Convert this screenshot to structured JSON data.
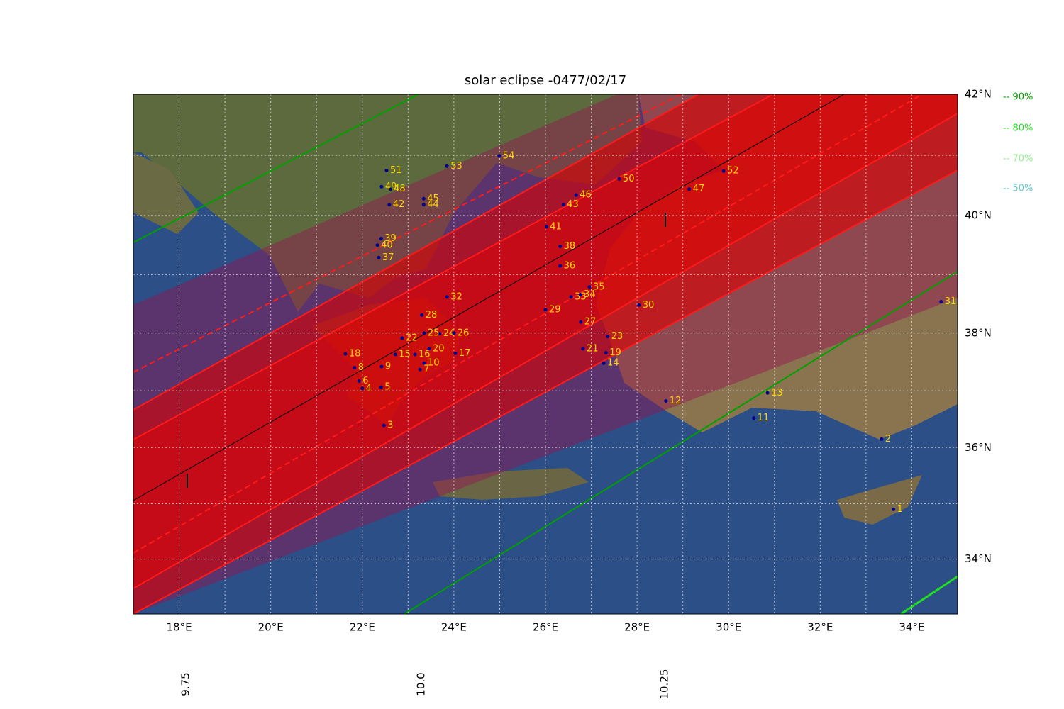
{
  "title": "solar eclipse -0477/02/17",
  "lonlim": [
    17,
    35
  ],
  "latlim": [
    33,
    42
  ],
  "grid_step": 1,
  "lon_ticks": [
    {
      "value": 18,
      "label": "18°E"
    },
    {
      "value": 20,
      "label": "20°E"
    },
    {
      "value": 22,
      "label": "22°E"
    },
    {
      "value": 24,
      "label": "24°E"
    },
    {
      "value": 26,
      "label": "26°E"
    },
    {
      "value": 28,
      "label": "28°E"
    },
    {
      "value": 30,
      "label": "30°E"
    },
    {
      "value": 32,
      "label": "32°E"
    },
    {
      "value": 34,
      "label": "34°E"
    }
  ],
  "lat_ticks": [
    {
      "value": 34,
      "label": "34°N"
    },
    {
      "value": 36,
      "label": "36°N"
    },
    {
      "value": 38,
      "label": "38°N"
    },
    {
      "value": 40,
      "label": "40°N"
    },
    {
      "value": 42,
      "label": "42°N"
    }
  ],
  "legend": [
    {
      "label": "-- 90%",
      "color": "#00a000"
    },
    {
      "label": "-- 80%",
      "color": "#22dd22"
    },
    {
      "label": "-- 70%",
      "color": "#90ee90"
    },
    {
      "label": "-- 50%",
      "color": "#5fc8c8"
    }
  ],
  "time_labels": [
    "9.75",
    "10.0",
    "10.25"
  ],
  "places": [
    {
      "label": 1,
      "lon": 33.6,
      "lat": 34.9
    },
    {
      "label": 2,
      "lon": 33.34,
      "lat": 36.15
    },
    {
      "label": 3,
      "lon": 22.47,
      "lat": 36.39
    },
    {
      "label": 4,
      "lon": 22.0,
      "lat": 37.04
    },
    {
      "label": 5,
      "lon": 22.41,
      "lat": 37.06
    },
    {
      "label": 6,
      "lon": 21.93,
      "lat": 37.17
    },
    {
      "label": 7,
      "lon": 23.26,
      "lat": 37.37
    },
    {
      "label": 8,
      "lon": 21.83,
      "lat": 37.4
    },
    {
      "label": 9,
      "lon": 22.42,
      "lat": 37.42
    },
    {
      "label": 10,
      "lon": 23.35,
      "lat": 37.48
    },
    {
      "label": 11,
      "lon": 30.55,
      "lat": 36.52
    },
    {
      "label": 12,
      "lon": 28.63,
      "lat": 36.82
    },
    {
      "label": 13,
      "lon": 30.85,
      "lat": 36.96
    },
    {
      "label": 14,
      "lon": 27.27,
      "lat": 37.48
    },
    {
      "label": 15,
      "lon": 22.72,
      "lat": 37.63
    },
    {
      "label": 16,
      "lon": 23.15,
      "lat": 37.63
    },
    {
      "label": 17,
      "lon": 24.03,
      "lat": 37.65
    },
    {
      "label": 18,
      "lon": 21.63,
      "lat": 37.64
    },
    {
      "label": 19,
      "lon": 27.32,
      "lat": 37.66
    },
    {
      "label": 20,
      "lon": 23.46,
      "lat": 37.73
    },
    {
      "label": 21,
      "lon": 26.82,
      "lat": 37.73
    },
    {
      "label": 22,
      "lon": 22.87,
      "lat": 37.91
    },
    {
      "label": 23,
      "lon": 27.36,
      "lat": 37.94
    },
    {
      "label": 24,
      "lon": 23.69,
      "lat": 37.99
    },
    {
      "label": 25,
      "lon": 23.35,
      "lat": 38.0
    },
    {
      "label": 26,
      "lon": 24.0,
      "lat": 38.0
    },
    {
      "label": 27,
      "lon": 26.77,
      "lat": 38.19
    },
    {
      "label": 28,
      "lon": 23.3,
      "lat": 38.31
    },
    {
      "label": 29,
      "lon": 26.0,
      "lat": 38.4
    },
    {
      "label": 30,
      "lon": 28.04,
      "lat": 38.48
    },
    {
      "label": 31,
      "lon": 34.64,
      "lat": 38.54
    },
    {
      "label": 32,
      "lon": 23.85,
      "lat": 38.62
    },
    {
      "label": 33,
      "lon": 26.56,
      "lat": 38.62
    },
    {
      "label": 34,
      "lon": 26.76,
      "lat": 38.66
    },
    {
      "label": 35,
      "lon": 26.96,
      "lat": 38.79
    },
    {
      "label": 36,
      "lon": 26.32,
      "lat": 39.15
    },
    {
      "label": 37,
      "lon": 22.36,
      "lat": 39.29
    },
    {
      "label": 38,
      "lon": 26.32,
      "lat": 39.48
    },
    {
      "label": 39,
      "lon": 22.41,
      "lat": 39.61
    },
    {
      "label": 40,
      "lon": 22.33,
      "lat": 39.5
    },
    {
      "label": 41,
      "lon": 26.02,
      "lat": 39.81
    },
    {
      "label": 42,
      "lon": 22.59,
      "lat": 40.18
    },
    {
      "label": 43,
      "lon": 26.39,
      "lat": 40.18
    },
    {
      "label": 44,
      "lon": 23.34,
      "lat": 40.18
    },
    {
      "label": 45,
      "lon": 23.34,
      "lat": 40.28
    },
    {
      "label": 46,
      "lon": 26.67,
      "lat": 40.34
    },
    {
      "label": 47,
      "lon": 29.14,
      "lat": 40.44
    },
    {
      "label": 48,
      "lon": 22.61,
      "lat": 40.44
    },
    {
      "label": 49,
      "lon": 22.42,
      "lat": 40.48
    },
    {
      "label": 50,
      "lon": 27.61,
      "lat": 40.61
    },
    {
      "label": 51,
      "lon": 22.53,
      "lat": 40.75
    },
    {
      "label": 52,
      "lon": 29.89,
      "lat": 40.74
    },
    {
      "label": 53,
      "lon": 23.85,
      "lat": 40.82
    },
    {
      "label": 54,
      "lon": 24.99,
      "lat": 40.99
    }
  ]
}
